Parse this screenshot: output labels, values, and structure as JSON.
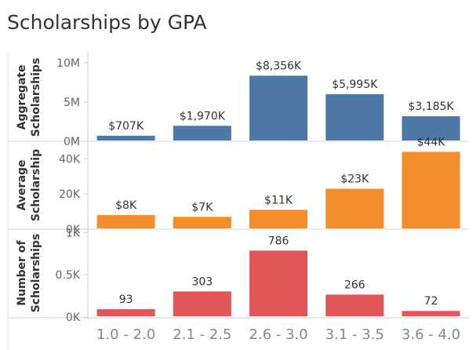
{
  "title": "Scholarships by GPA",
  "chart_data": [
    {
      "type": "bar",
      "title": "Scholarships by GPA",
      "ylabel": [
        "Aggregate",
        "Scholarships"
      ],
      "categories": [
        "1.0 - 2.0",
        "2.1 - 2.5",
        "2.6 - 3.0",
        "3.1 - 3.5",
        "3.6 - 4.0"
      ],
      "values": [
        707,
        1970,
        8356,
        5995,
        3185
      ],
      "data_labels": [
        "$707K",
        "$1,970K",
        "$8,356K",
        "$5,995K",
        "$3,185K"
      ],
      "ylim": [
        0,
        11200
      ],
      "yticks": [
        0,
        5000,
        10000
      ],
      "ytick_labels": [
        "0M",
        "5M",
        "10M"
      ],
      "color": "#4e79a7"
    },
    {
      "type": "bar",
      "ylabel": [
        "Average",
        "Scholarship"
      ],
      "categories": [
        "1.0 - 2.0",
        "2.1 - 2.5",
        "2.6 - 3.0",
        "3.1 - 3.5",
        "3.6 - 4.0"
      ],
      "values": [
        8,
        7,
        11,
        23,
        44
      ],
      "data_labels": [
        "$8K",
        "$7K",
        "$11K",
        "$23K",
        "$44K"
      ],
      "ylim": [
        0,
        50
      ],
      "yticks": [
        0,
        20,
        40
      ],
      "ytick_labels": [
        "0K",
        "20K",
        "40K"
      ],
      "color": "#f28e2b"
    },
    {
      "type": "bar",
      "ylabel": [
        "Number of",
        "Scholarships"
      ],
      "categories": [
        "1.0 - 2.0",
        "2.1 - 2.5",
        "2.6 - 3.0",
        "3.1 - 3.5",
        "3.6 - 4.0"
      ],
      "values": [
        93,
        303,
        786,
        266,
        72
      ],
      "data_labels": [
        "93",
        "303",
        "786",
        "266",
        "72"
      ],
      "ylim": [
        0,
        1040
      ],
      "yticks": [
        0,
        500,
        1000
      ],
      "ytick_labels": [
        "0K",
        "0.5K",
        "1K"
      ],
      "color": "#e15759"
    }
  ]
}
